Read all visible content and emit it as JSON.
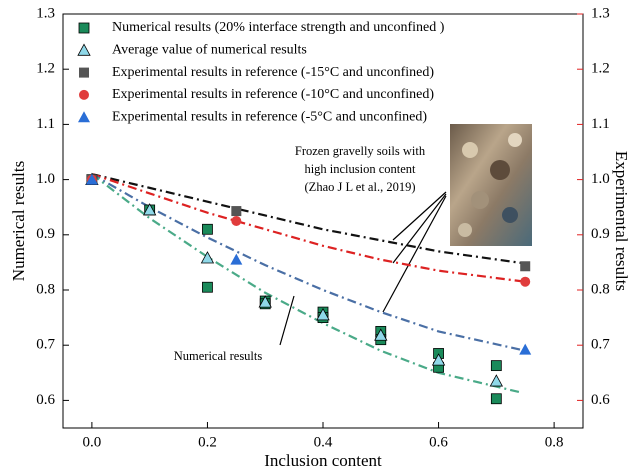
{
  "chart_data": {
    "type": "scatter",
    "x_label": "Inclusion content",
    "y_label": "Numerical results",
    "y2_label": "Experimental results",
    "xlim": [
      -0.05,
      0.85
    ],
    "xticks": [
      {
        "value": 0,
        "label": "0.0"
      },
      0.2,
      0.4,
      0.6,
      0.8
    ],
    "ylim": [
      0.55,
      1.3
    ],
    "yticks": [
      0.6,
      0.7,
      0.8,
      0.9,
      {
        "value": 1,
        "label": "1.0"
      },
      1.1,
      1.2,
      1.3
    ],
    "y2lim": [
      0.55,
      1.3
    ],
    "y2ticks": [
      0.6,
      0.7,
      0.8,
      0.9,
      {
        "value": 1,
        "label": "1.0"
      },
      1.1,
      1.2,
      1.3
    ],
    "y2_color": "#e02020",
    "legend_position": "upper left",
    "series": [
      {
        "name": "Numerical results (20% interface strength and unconfined )",
        "color": "#1a8a5a",
        "marker": "square",
        "x": [
          0,
          0.1,
          0.2,
          0.2,
          0.3,
          0.3,
          0.4,
          0.4,
          0.5,
          0.5,
          0.6,
          0.6,
          0.7,
          0.7
        ],
        "values": [
          1.0,
          0.945,
          0.91,
          0.805,
          0.78,
          0.775,
          0.76,
          0.75,
          0.725,
          0.71,
          0.685,
          0.66,
          0.663,
          0.603
        ]
      },
      {
        "name": "Average value of numerical results",
        "color": "#8fd8e8",
        "marker": "triangle",
        "x": [
          0,
          0.1,
          0.2,
          0.3,
          0.4,
          0.5,
          0.6,
          0.7
        ],
        "values": [
          1.0,
          0.945,
          0.858,
          0.778,
          0.755,
          0.718,
          0.673,
          0.635
        ]
      },
      {
        "name": "Experimental results in reference (-15°C and unconfined)",
        "color": "#555555",
        "marker": "square",
        "axis": "y2",
        "x": [
          0,
          0.25,
          0.75
        ],
        "values": [
          1.0,
          0.943,
          0.843
        ]
      },
      {
        "name": "Experimental results in reference (-10°C and unconfined)",
        "color": "#e03c3c",
        "marker": "circle",
        "axis": "y2",
        "x": [
          0,
          0.25,
          0.75
        ],
        "values": [
          1.0,
          0.925,
          0.815
        ]
      },
      {
        "name": "Experimental results in reference (-5°C and unconfined)",
        "color": "#2a6ed6",
        "marker": "triangle",
        "axis": "y2",
        "x": [
          0,
          0.25,
          0.75
        ],
        "values": [
          1.0,
          0.855,
          0.692
        ]
      }
    ],
    "fit_lines": [
      {
        "color": "#111111",
        "x": [
          0,
          0.1,
          0.2,
          0.3,
          0.4,
          0.5,
          0.6,
          0.75
        ],
        "values": [
          1.01,
          0.985,
          0.96,
          0.935,
          0.91,
          0.89,
          0.87,
          0.848
        ]
      },
      {
        "color": "#dd2222",
        "x": [
          0,
          0.1,
          0.2,
          0.3,
          0.4,
          0.5,
          0.6,
          0.75
        ],
        "values": [
          1.01,
          0.975,
          0.94,
          0.91,
          0.88,
          0.855,
          0.835,
          0.815
        ]
      },
      {
        "color": "#4a6fa5",
        "x": [
          0,
          0.1,
          0.2,
          0.3,
          0.4,
          0.5,
          0.6,
          0.75
        ],
        "values": [
          1.01,
          0.95,
          0.895,
          0.845,
          0.8,
          0.76,
          0.725,
          0.69
        ]
      },
      {
        "color": "#4aaa88",
        "x": [
          0,
          0.1,
          0.2,
          0.3,
          0.4,
          0.5,
          0.6,
          0.74
        ],
        "values": [
          1.01,
          0.93,
          0.86,
          0.795,
          0.74,
          0.69,
          0.65,
          0.615
        ]
      }
    ],
    "annotations": [
      "Frozen gravelly soils with",
      "high inclusion content",
      "(Zhao J L et al., 2019)",
      "Numerical results"
    ]
  }
}
